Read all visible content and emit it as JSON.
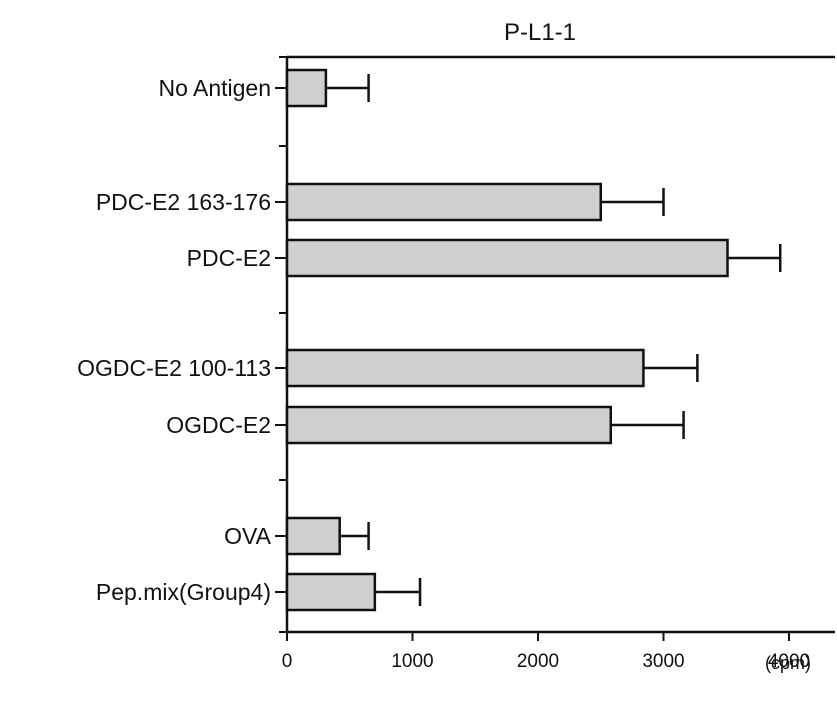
{
  "chart_data": {
    "type": "bar",
    "orientation": "horizontal",
    "title": "P-L1-1",
    "xlabel": "",
    "ylabel": "",
    "x_unit_label": "(cpm)",
    "xlim": [
      0,
      4400
    ],
    "xticks": [
      0,
      1000,
      2000,
      3000,
      4000
    ],
    "xtick_labels": [
      "0",
      "1000",
      "2000",
      "3000",
      "4000"
    ],
    "grid": false,
    "legend": "none",
    "bar_fill": "#cfcfcf",
    "bar_stroke": "#111111",
    "categories": [
      "No Antigen",
      "PDC-E2 163-176",
      "PDC-E2",
      "OGDC-E2 100-113",
      "OGDC-E2",
      "OVA",
      "Pep.mix(Group4)"
    ],
    "values": [
      310,
      2500,
      3510,
      2840,
      2580,
      420,
      700
    ],
    "error": [
      340,
      500,
      420,
      430,
      580,
      230,
      360
    ],
    "groups": [
      [
        0
      ],
      [
        1,
        2
      ],
      [
        3,
        4
      ],
      [
        5,
        6
      ]
    ]
  }
}
